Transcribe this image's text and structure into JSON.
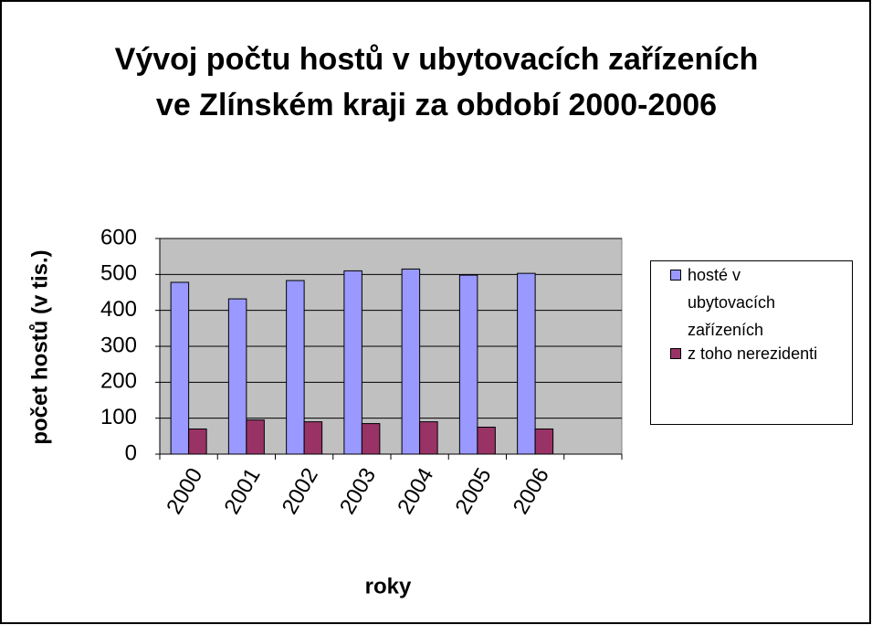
{
  "chart_data": {
    "type": "bar",
    "title": "Vývoj počtu hostů v ubytovacích zařízeních ve Zlínském kraji za období 2000-2006",
    "x_label": "roky",
    "y_label": "počet hostů (v tis.)",
    "categories": [
      "2000",
      "2001",
      "2002",
      "2003",
      "2004",
      "2005",
      "2006",
      null
    ],
    "series": [
      {
        "name": "hosté v ubytovacích zařízeních",
        "color": "#9999ff",
        "values": [
          478,
          432,
          483,
          510,
          515,
          498,
          503,
          null
        ]
      },
      {
        "name": "z toho nerezidenti",
        "color": "#993366",
        "values": [
          70,
          95,
          90,
          85,
          90,
          75,
          70,
          null
        ]
      }
    ],
    "ylim": [
      0,
      600
    ],
    "yticks": [
      0,
      100,
      200,
      300,
      400,
      500,
      600
    ],
    "grid": true,
    "legend": "right"
  }
}
